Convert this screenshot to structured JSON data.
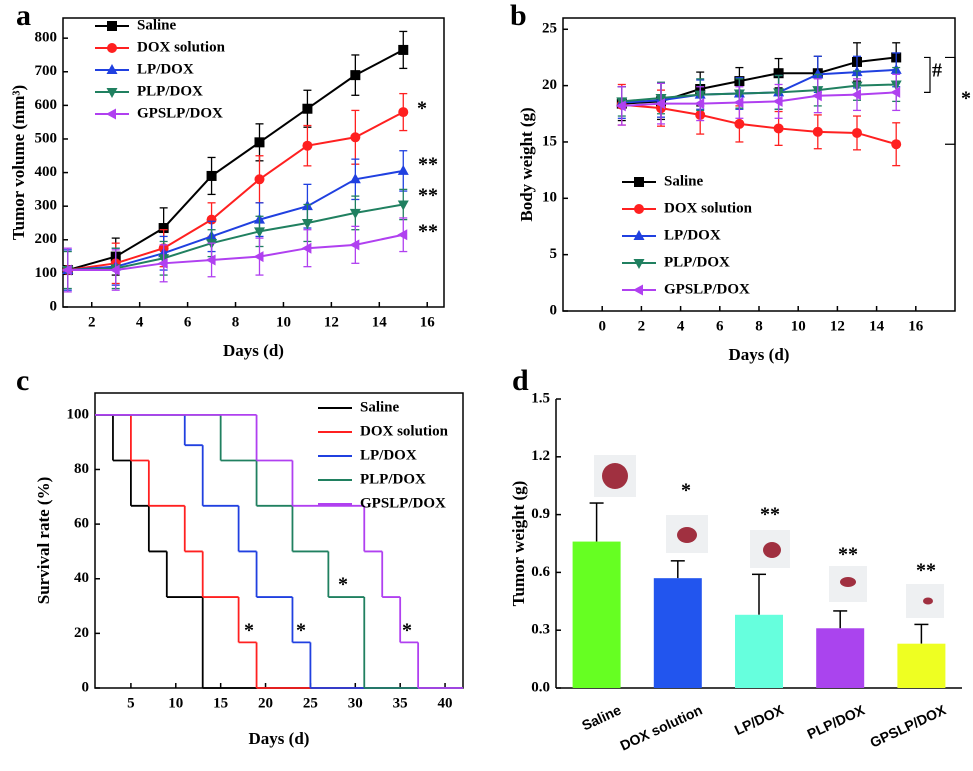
{
  "chart_data": [
    {
      "type": "line",
      "label": "a",
      "xlabel": "Days (d)",
      "ylabel": "Tumor volume (mm³)",
      "x": [
        1,
        3,
        5,
        7,
        9,
        11,
        13,
        15
      ],
      "xlim": [
        0.8,
        16.7
      ],
      "xticks": [
        2,
        4,
        6,
        8,
        10,
        12,
        14,
        16
      ],
      "ylim": [
        0,
        860
      ],
      "yticks": [
        0,
        100,
        200,
        300,
        400,
        500,
        600,
        700,
        800
      ],
      "series": [
        {
          "name": "Saline",
          "color": "#000000",
          "marker": "square",
          "values": [
            110,
            150,
            235,
            390,
            490,
            590,
            690,
            765
          ],
          "errors": [
            8,
            55,
            60,
            55,
            55,
            55,
            60,
            55
          ]
        },
        {
          "name": "DOX solution",
          "color": "#ff2020",
          "marker": "circle",
          "values": [
            110,
            130,
            175,
            260,
            380,
            480,
            505,
            580
          ],
          "errors": [
            10,
            60,
            55,
            50,
            70,
            60,
            80,
            55
          ]
        },
        {
          "name": "LP/DOX",
          "color": "#2040e0",
          "marker": "up",
          "values": [
            110,
            120,
            160,
            210,
            260,
            300,
            380,
            405
          ],
          "errors": [
            60,
            55,
            50,
            45,
            50,
            65,
            60,
            60
          ]
        },
        {
          "name": "PLP/DOX",
          "color": "#208060",
          "marker": "down",
          "values": [
            110,
            115,
            145,
            190,
            225,
            250,
            280,
            305
          ],
          "errors": [
            55,
            60,
            50,
            40,
            45,
            55,
            50,
            45
          ]
        },
        {
          "name": "GPSLP/DOX",
          "color": "#b040f0",
          "marker": "left",
          "values": [
            110,
            110,
            130,
            140,
            150,
            175,
            185,
            215
          ],
          "errors": [
            65,
            60,
            55,
            50,
            55,
            55,
            55,
            50
          ]
        }
      ],
      "annotations": [
        "*",
        "**",
        "**",
        "**"
      ]
    },
    {
      "type": "line",
      "label": "b",
      "xlabel": "Days (d)",
      "ylabel": "Body weight (g)",
      "x": [
        1,
        3,
        5,
        7,
        9,
        11,
        13,
        15
      ],
      "xlim": [
        -2,
        18
      ],
      "xticks": [
        0,
        2,
        4,
        6,
        8,
        10,
        12,
        14,
        16
      ],
      "ylim": [
        0,
        26
      ],
      "yticks": [
        0,
        5,
        10,
        15,
        20,
        25
      ],
      "series": [
        {
          "name": "Saline",
          "color": "#000000",
          "marker": "square",
          "values": [
            18.4,
            18.6,
            19.7,
            20.4,
            21.1,
            21.1,
            22.1,
            22.5
          ],
          "errors": [
            1.5,
            1.6,
            1.5,
            1.2,
            1.3,
            1.5,
            1.7,
            1.3
          ]
        },
        {
          "name": "DOX solution",
          "color": "#ff2020",
          "marker": "circle",
          "values": [
            18.3,
            18.0,
            17.4,
            16.6,
            16.2,
            15.9,
            15.8,
            14.8
          ],
          "errors": [
            1.8,
            1.6,
            1.7,
            1.6,
            1.5,
            1.5,
            1.5,
            1.9
          ]
        },
        {
          "name": "LP/DOX",
          "color": "#2040e0",
          "marker": "up",
          "values": [
            18.5,
            18.7,
            19.2,
            19.3,
            19.4,
            21.0,
            21.2,
            21.4
          ],
          "errors": [
            1.4,
            1.5,
            1.3,
            1.4,
            1.5,
            1.6,
            1.4,
            1.5
          ]
        },
        {
          "name": "PLP/DOX",
          "color": "#208060",
          "marker": "down",
          "values": [
            18.6,
            18.9,
            19.2,
            19.3,
            19.4,
            19.6,
            20.0,
            20.1
          ],
          "errors": [
            1.3,
            1.4,
            1.4,
            1.3,
            1.5,
            1.4,
            1.3,
            1.5
          ]
        },
        {
          "name": "GPSLP/DOX",
          "color": "#b040f0",
          "marker": "left",
          "values": [
            18.2,
            18.4,
            18.4,
            18.5,
            18.6,
            19.1,
            19.2,
            19.4
          ],
          "errors": [
            1.7,
            1.8,
            1.5,
            1.4,
            1.5,
            1.5,
            1.4,
            1.6
          ]
        }
      ],
      "annotations": [
        "#",
        "*"
      ]
    },
    {
      "type": "step",
      "label": "c",
      "xlabel": "Days (d)",
      "ylabel": "Survival rate (%)",
      "xlim": [
        1,
        42
      ],
      "xticks": [
        5,
        10,
        15,
        20,
        25,
        30,
        35,
        40
      ],
      "ylim": [
        0,
        108
      ],
      "yticks": [
        0,
        20,
        40,
        60,
        80,
        100
      ],
      "series": [
        {
          "name": "Saline",
          "color": "#000000",
          "x": [
            1,
            3,
            5,
            7,
            9,
            13,
            42
          ],
          "values": [
            100,
            83.3,
            66.7,
            50,
            33.3,
            0,
            0
          ]
        },
        {
          "name": "DOX solution",
          "color": "#ff2020",
          "x": [
            1,
            5,
            7,
            11,
            13,
            17,
            19,
            42
          ],
          "values": [
            100,
            83.3,
            66.7,
            50,
            33.3,
            16.7,
            0,
            0
          ]
        },
        {
          "name": "LP/DOX",
          "color": "#2040e0",
          "x": [
            1,
            11,
            13,
            17,
            19,
            23,
            25,
            42
          ],
          "values": [
            100,
            88.9,
            66.7,
            50,
            33.3,
            16.7,
            0,
            0
          ]
        },
        {
          "name": "PLP/DOX",
          "color": "#208060",
          "x": [
            1,
            15,
            19,
            23,
            27,
            31,
            42
          ],
          "values": [
            100,
            83.3,
            66.7,
            50,
            33.3,
            0,
            0
          ]
        },
        {
          "name": "GPSLP/DOX",
          "color": "#b040f0",
          "x": [
            1,
            19,
            23,
            31,
            33,
            35,
            37,
            42
          ],
          "values": [
            100,
            83.3,
            66.7,
            50,
            33.3,
            16.7,
            0,
            0
          ]
        }
      ],
      "annotations": [
        "*",
        "*",
        "*",
        "*"
      ]
    },
    {
      "type": "bar",
      "label": "d",
      "ylabel": "Tumor weight (g)",
      "categories": [
        "Saline",
        "DOX solution",
        "LP/DOX",
        "PLP/DOX",
        "GPSLP/DOX"
      ],
      "values": [
        0.76,
        0.57,
        0.38,
        0.31,
        0.23
      ],
      "errors": [
        0.2,
        0.09,
        0.21,
        0.09,
        0.1
      ],
      "colors": [
        "#66ff22",
        "#2255ee",
        "#66ffdd",
        "#aa44ee",
        "#eeff22"
      ],
      "ylim": [
        0,
        1.5
      ],
      "yticks": [
        {
          "value": 0,
          "label": "0.0"
        },
        0.3,
        0.6,
        0.9,
        1.2,
        1.5
      ],
      "annotations": [
        "*",
        "**",
        "**",
        "**"
      ]
    }
  ]
}
